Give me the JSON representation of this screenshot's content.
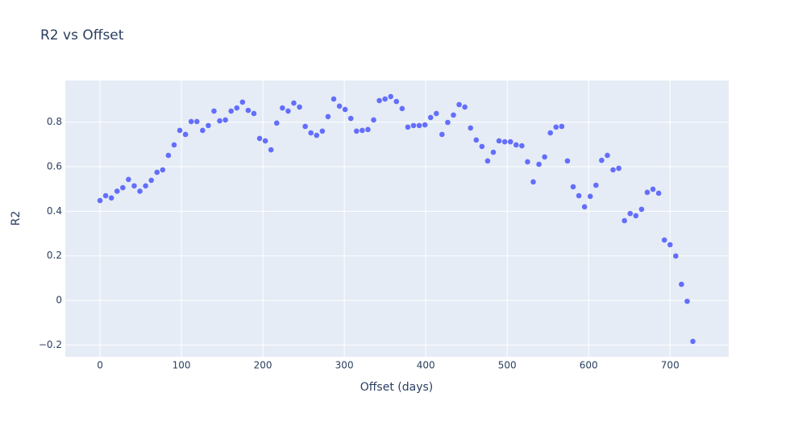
{
  "chart_data": {
    "type": "scatter",
    "title": "R2 vs Offset",
    "x_label": "Offset (days)",
    "y_label": "R2",
    "color": "#636efa",
    "grid": true,
    "x": [
      0,
      7,
      14,
      21,
      28,
      35,
      42,
      49,
      56,
      63,
      70,
      77,
      84,
      91,
      98,
      105,
      112,
      119,
      126,
      133,
      140,
      147,
      154,
      161,
      168,
      175,
      182,
      189,
      196,
      203,
      210,
      217,
      224,
      231,
      238,
      245,
      252,
      259,
      266,
      273,
      280,
      287,
      294,
      301,
      308,
      315,
      322,
      329,
      336,
      343,
      350,
      357,
      364,
      371,
      378,
      385,
      392,
      399,
      406,
      413,
      420,
      427,
      434,
      441,
      448,
      455,
      462,
      469,
      476,
      483,
      490,
      497,
      504,
      511,
      518,
      525,
      532,
      539,
      546,
      553,
      560,
      567,
      574,
      581,
      588,
      595,
      602,
      609,
      616,
      623,
      630,
      637,
      644,
      651,
      658,
      665,
      672,
      679,
      686,
      693,
      700,
      707,
      714,
      721,
      728
    ],
    "values": [
      0.448,
      0.47,
      0.46,
      0.49,
      0.506,
      0.543,
      0.514,
      0.49,
      0.514,
      0.539,
      0.575,
      0.586,
      0.651,
      0.698,
      0.763,
      0.745,
      0.803,
      0.803,
      0.763,
      0.785,
      0.85,
      0.806,
      0.81,
      0.85,
      0.864,
      0.89,
      0.853,
      0.839,
      0.727,
      0.716,
      0.676,
      0.796,
      0.864,
      0.85,
      0.886,
      0.868,
      0.781,
      0.752,
      0.741,
      0.76,
      0.825,
      0.904,
      0.872,
      0.857,
      0.817,
      0.76,
      0.763,
      0.767,
      0.81,
      0.897,
      0.904,
      0.915,
      0.893,
      0.861,
      0.778,
      0.785,
      0.785,
      0.788,
      0.821,
      0.839,
      0.745,
      0.799,
      0.832,
      0.879,
      0.868,
      0.774,
      0.72,
      0.691,
      0.626,
      0.665,
      0.716,
      0.712,
      0.712,
      0.698,
      0.694,
      0.622,
      0.532,
      0.611,
      0.644,
      0.752,
      0.778,
      0.781,
      0.626,
      0.51,
      0.47,
      0.42,
      0.467,
      0.517,
      0.629,
      0.651,
      0.586,
      0.593,
      0.358,
      0.39,
      0.38,
      0.409,
      0.485,
      0.499,
      0.481,
      0.271,
      0.25,
      0.199,
      0.072,
      -0.004,
      -0.184
    ],
    "xlim": [
      -42.6,
      772
    ],
    "ylim": [
      -0.253,
      0.987
    ],
    "xticks": [
      0,
      100,
      200,
      300,
      400,
      500,
      600,
      700
    ],
    "yticks": [
      {
        "value": -0.2,
        "label": "−0.2"
      },
      0,
      0.2,
      0.4,
      0.6,
      0.8
    ]
  }
}
